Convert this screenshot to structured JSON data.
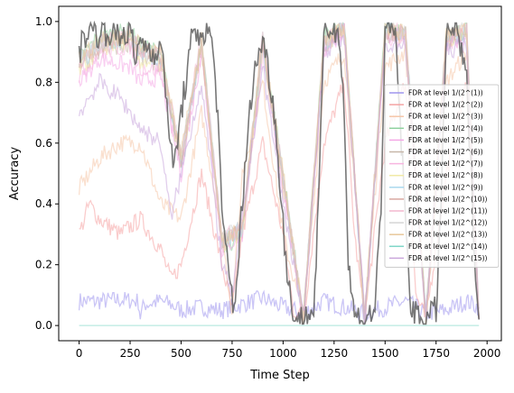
{
  "chart_data": {
    "type": "line",
    "title": "",
    "xlabel": "Time Step",
    "ylabel": "Accuracy",
    "xlim": [
      -100,
      2070
    ],
    "ylim": [
      -0.05,
      1.05
    ],
    "xticks": [
      0,
      250,
      500,
      750,
      1000,
      1250,
      1500,
      1750,
      2000
    ],
    "xtick_labels": [
      "0",
      "250",
      "500",
      "750",
      "1000",
      "1250",
      "1500",
      "1750",
      "2000"
    ],
    "yticks": [
      0.0,
      0.2,
      0.4,
      0.6,
      0.8,
      1.0
    ],
    "ytick_labels": [
      "0.0",
      "0.2",
      "0.4",
      "0.6",
      "0.8",
      "1.0"
    ],
    "grid": false,
    "legend_position": "center-right",
    "series": [
      {
        "name": "FDR at level 1/(2^(1))",
        "color": "#9f95ee",
        "x": [
          0,
          100,
          200,
          290,
          300,
          320,
          400,
          450,
          500,
          600,
          700,
          800,
          900,
          1000,
          1050,
          1100,
          1200,
          1300,
          1400,
          1500,
          1600,
          1700,
          1800,
          1900,
          1960
        ],
        "y": [
          0.08,
          0.08,
          0.085,
          0.08,
          0.03,
          0.07,
          0.08,
          0.07,
          0.05,
          0.06,
          0.05,
          0.07,
          0.09,
          0.06,
          0.05,
          0.04,
          0.08,
          0.06,
          0.04,
          0.06,
          0.08,
          0.04,
          0.05,
          0.08,
          0.06
        ]
      },
      {
        "name": "FDR at level 1/(2^(2))",
        "color": "#f5a3a3",
        "x": [
          0,
          50,
          100,
          200,
          300,
          400,
          450,
          500,
          600,
          700,
          750,
          800,
          900,
          1000,
          1050,
          1100,
          1200,
          1300,
          1350,
          1400,
          1500,
          1600,
          1650,
          1700,
          1800,
          1900,
          1960
        ],
        "y": [
          0.3,
          0.4,
          0.35,
          0.3,
          0.35,
          0.25,
          0.15,
          0.2,
          0.5,
          0.2,
          0.05,
          0.3,
          0.6,
          0.3,
          0.05,
          0.02,
          0.6,
          0.8,
          0.3,
          0.02,
          0.6,
          0.8,
          0.1,
          0.02,
          0.5,
          0.8,
          0.02
        ]
      },
      {
        "name": "FDR at level 1/(2^(3))",
        "color": "#f5c6a8",
        "x": [
          0,
          100,
          200,
          300,
          400,
          500,
          600,
          700,
          750,
          800,
          900,
          1000,
          1100,
          1200,
          1300,
          1400,
          1500,
          1600,
          1700,
          1800,
          1900,
          1960
        ],
        "y": [
          0.45,
          0.55,
          0.6,
          0.6,
          0.4,
          0.35,
          0.7,
          0.3,
          0.05,
          0.5,
          0.8,
          0.3,
          0.02,
          0.8,
          0.9,
          0.02,
          0.85,
          0.9,
          0.02,
          0.8,
          0.9,
          0.02
        ]
      },
      {
        "name": "FDR at level 1/(2^(4))",
        "color": "#8fd19e",
        "x": [
          0,
          100,
          250,
          300,
          400,
          500,
          600,
          700,
          800,
          900,
          1000,
          1100,
          1200,
          1300,
          1400,
          1500,
          1600,
          1700,
          1800,
          1900,
          1960
        ],
        "y": [
          0.88,
          0.95,
          0.97,
          0.92,
          0.9,
          0.5,
          0.95,
          0.25,
          0.3,
          0.95,
          0.5,
          0.02,
          0.95,
          0.98,
          0.02,
          0.98,
          0.96,
          0.02,
          0.95,
          0.97,
          0.02
        ]
      },
      {
        "name": "FDR at level 1/(2^(5))",
        "color": "#f4a8e6",
        "x": [
          0,
          100,
          250,
          300,
          400,
          500,
          600,
          700,
          800,
          900,
          1000,
          1100,
          1200,
          1300,
          1400,
          1500,
          1600,
          1700,
          1800,
          1900,
          1960
        ],
        "y": [
          0.8,
          0.88,
          0.85,
          0.8,
          0.82,
          0.5,
          0.9,
          0.25,
          0.3,
          0.9,
          0.45,
          0.02,
          0.9,
          0.97,
          0.02,
          0.95,
          0.95,
          0.02,
          0.92,
          0.95,
          0.02
        ]
      },
      {
        "name": "FDR at level 1/(2^(6))",
        "color": "#c7b6a8",
        "x": [
          0,
          100,
          250,
          300,
          400,
          500,
          600,
          700,
          800,
          900,
          1000,
          1100,
          1200,
          1300,
          1400,
          1500,
          1600,
          1700,
          1800,
          1900,
          1960
        ],
        "y": [
          0.85,
          0.9,
          0.93,
          0.88,
          0.86,
          0.55,
          0.92,
          0.28,
          0.32,
          0.92,
          0.48,
          0.02,
          0.92,
          0.97,
          0.02,
          0.96,
          0.95,
          0.02,
          0.93,
          0.96,
          0.02
        ]
      },
      {
        "name": "FDR at level 1/(2^(7))",
        "color": "#f7b5e0",
        "x": [
          0,
          100,
          250,
          300,
          400,
          500,
          600,
          700,
          800,
          900,
          1000,
          1100,
          1200,
          1300,
          1400,
          1500,
          1600,
          1700,
          1800,
          1900,
          1960
        ],
        "y": [
          0.82,
          0.9,
          0.92,
          0.85,
          0.84,
          0.52,
          0.9,
          0.26,
          0.31,
          0.91,
          0.46,
          0.02,
          0.91,
          0.97,
          0.02,
          0.95,
          0.94,
          0.02,
          0.92,
          0.95,
          0.02
        ]
      },
      {
        "name": "FDR at level 1/(2^(8))",
        "color": "#f1e9a6",
        "x": [
          0,
          100,
          250,
          300,
          400,
          500,
          600,
          700,
          800,
          900,
          1000,
          1100,
          1200,
          1300,
          1400,
          1500,
          1600,
          1700,
          1800,
          1900,
          1960
        ],
        "y": [
          0.84,
          0.91,
          0.94,
          0.87,
          0.86,
          0.54,
          0.92,
          0.27,
          0.31,
          0.92,
          0.47,
          0.02,
          0.92,
          0.97,
          0.02,
          0.96,
          0.95,
          0.02,
          0.93,
          0.96,
          0.02
        ]
      },
      {
        "name": "FDR at level 1/(2^(9))",
        "color": "#a9d8ee",
        "x": [
          0,
          100,
          250,
          300,
          400,
          500,
          600,
          700,
          800,
          900,
          1000,
          1100,
          1200,
          1300,
          1400,
          1500,
          1600,
          1700,
          1800,
          1900,
          1960
        ],
        "y": [
          0.86,
          0.93,
          0.95,
          0.9,
          0.88,
          0.55,
          0.93,
          0.27,
          0.32,
          0.93,
          0.48,
          0.02,
          0.93,
          0.98,
          0.02,
          0.97,
          0.96,
          0.02,
          0.94,
          0.97,
          0.02
        ]
      },
      {
        "name": "FDR at level 1/(2^(10))",
        "color": "#d9a8a0",
        "x": [
          0,
          100,
          250,
          300,
          400,
          500,
          600,
          700,
          800,
          900,
          1000,
          1100,
          1200,
          1300,
          1400,
          1500,
          1600,
          1700,
          1800,
          1900,
          1960
        ],
        "y": [
          0.86,
          0.92,
          0.95,
          0.9,
          0.88,
          0.55,
          0.93,
          0.27,
          0.32,
          0.93,
          0.48,
          0.02,
          0.93,
          0.98,
          0.02,
          0.97,
          0.96,
          0.02,
          0.94,
          0.97,
          0.02
        ]
      },
      {
        "name": "FDR at level 1/(2^(11))",
        "color": "#f2b8cf",
        "x": [
          0,
          100,
          250,
          300,
          400,
          500,
          600,
          700,
          800,
          900,
          1000,
          1100,
          1200,
          1300,
          1400,
          1500,
          1600,
          1700,
          1800,
          1900,
          1960
        ],
        "y": [
          0.87,
          0.93,
          0.96,
          0.91,
          0.89,
          0.56,
          0.94,
          0.28,
          0.33,
          0.94,
          0.49,
          0.02,
          0.94,
          0.98,
          0.02,
          0.97,
          0.96,
          0.02,
          0.95,
          0.97,
          0.02
        ]
      },
      {
        "name": "FDR at level 1/(2^(12))",
        "color": "#d5d5d5",
        "x": [
          0,
          100,
          250,
          300,
          400,
          500,
          600,
          700,
          800,
          900,
          1000,
          1100,
          1200,
          1300,
          1400,
          1500,
          1600,
          1700,
          1800,
          1900,
          1960
        ],
        "y": [
          0.87,
          0.93,
          0.96,
          0.91,
          0.89,
          0.56,
          0.94,
          0.28,
          0.33,
          0.94,
          0.49,
          0.02,
          0.94,
          0.98,
          0.02,
          0.97,
          0.96,
          0.02,
          0.95,
          0.97,
          0.02
        ]
      },
      {
        "name": "FDR at level 1/(2^(13))",
        "color": "#e8c89a",
        "x": [
          0,
          100,
          250,
          300,
          400,
          500,
          600,
          700,
          800,
          900,
          1000,
          1100,
          1200,
          1300,
          1400,
          1500,
          1600,
          1700,
          1800,
          1900,
          1960
        ],
        "y": [
          0.88,
          0.94,
          0.96,
          0.92,
          0.9,
          0.57,
          0.94,
          0.28,
          0.33,
          0.94,
          0.5,
          0.02,
          0.94,
          0.98,
          0.02,
          0.97,
          0.96,
          0.02,
          0.95,
          0.97,
          0.02
        ]
      },
      {
        "name": "FDR at level 1/(2^(14))",
        "color": "#7fd6c8",
        "x": [
          0,
          500,
          1000,
          1500,
          1960
        ],
        "y": [
          0.0,
          0.0,
          0.0,
          0.0,
          0.0
        ]
      },
      {
        "name": "FDR at level 1/(2^(15))",
        "color": "#c9a6dc",
        "x": [
          0,
          100,
          200,
          300,
          400,
          450,
          500,
          600,
          700,
          750,
          800,
          900,
          1000,
          1100,
          1200,
          1300,
          1400,
          1500,
          1600,
          1700,
          1800,
          1900,
          1960
        ],
        "y": [
          0.7,
          0.8,
          0.75,
          0.65,
          0.6,
          0.35,
          0.5,
          0.8,
          0.2,
          0.1,
          0.35,
          0.85,
          0.4,
          0.02,
          0.9,
          0.95,
          0.02,
          0.92,
          0.93,
          0.02,
          0.9,
          0.93,
          0.02
        ]
      },
      {
        "name": "",
        "color": "#555555",
        "x": [
          0,
          25,
          50,
          100,
          150,
          200,
          250,
          280,
          300,
          350,
          400,
          430,
          460,
          500,
          550,
          600,
          650,
          680,
          700,
          730,
          760,
          800,
          850,
          900,
          950,
          1000,
          1020,
          1060,
          1100,
          1150,
          1180,
          1200,
          1250,
          1280,
          1300,
          1320,
          1350,
          1400,
          1450,
          1480,
          1500,
          1550,
          1580,
          1620,
          1650,
          1700,
          1750,
          1780,
          1800,
          1850,
          1900,
          1950,
          1960
        ],
        "y": [
          0.9,
          0.95,
          0.98,
          0.96,
          0.97,
          0.95,
          0.98,
          0.85,
          0.95,
          0.9,
          0.92,
          0.75,
          0.5,
          0.7,
          0.93,
          0.97,
          0.95,
          0.7,
          0.35,
          0.2,
          0.05,
          0.4,
          0.8,
          0.95,
          0.75,
          0.35,
          0.15,
          0.02,
          0.02,
          0.05,
          0.5,
          0.97,
          0.98,
          0.95,
          0.7,
          0.2,
          0.03,
          0.02,
          0.05,
          0.4,
          0.98,
          0.96,
          0.6,
          0.1,
          0.03,
          0.02,
          0.05,
          0.5,
          0.97,
          0.98,
          0.8,
          0.1,
          0.02
        ]
      }
    ]
  }
}
